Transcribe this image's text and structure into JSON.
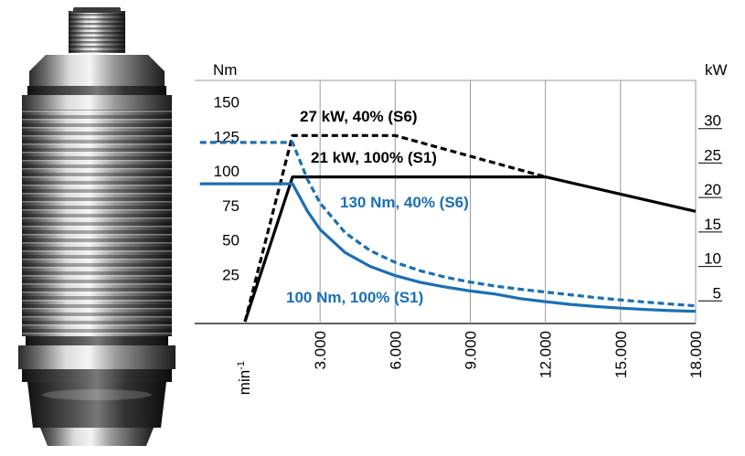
{
  "chart_data": {
    "type": "line",
    "left_unit": "Nm",
    "right_unit": "kW",
    "x_unit_label": "min",
    "x_unit_exp": "-1",
    "xlim": [
      0,
      18000
    ],
    "ylim_left": [
      0,
      175
    ],
    "ylim_right": [
      0,
      35
    ],
    "x_ticks": [
      {
        "value": 3000,
        "label": "3.000"
      },
      {
        "value": 6000,
        "label": "6.000"
      },
      {
        "value": 9000,
        "label": "9.000"
      },
      {
        "value": 12000,
        "label": "12.000"
      },
      {
        "value": 15000,
        "label": "15.000"
      },
      {
        "value": 18000,
        "label": "18.000"
      }
    ],
    "left_ticks": [
      {
        "value": 25,
        "label": "25"
      },
      {
        "value": 50,
        "label": "50"
      },
      {
        "value": 75,
        "label": "75"
      },
      {
        "value": 100,
        "label": "100"
      },
      {
        "value": 125,
        "label": "125"
      },
      {
        "value": 150,
        "label": "150"
      }
    ],
    "right_ticks": [
      {
        "value": 5,
        "label": "5"
      },
      {
        "value": 10,
        "label": "10"
      },
      {
        "value": 15,
        "label": "15"
      },
      {
        "value": 20,
        "label": "20"
      },
      {
        "value": 25,
        "label": "25"
      },
      {
        "value": 30,
        "label": "30"
      }
    ],
    "grid": true,
    "series": [
      {
        "name": "27 kW, 40% (S6)",
        "axis": "right",
        "color": "#000000",
        "dash": true,
        "x": [
          0,
          1900,
          6000,
          12000
        ],
        "y": [
          0,
          27,
          27,
          21
        ]
      },
      {
        "name": "21 kW, 100% (S1)",
        "axis": "right",
        "color": "#000000",
        "dash": false,
        "x": [
          0,
          1900,
          12000,
          18000
        ],
        "y": [
          0,
          21,
          21,
          16
        ]
      },
      {
        "name": "130 Nm, 40% (S6)",
        "axis": "left",
        "color": "#1a6fb4",
        "dash": true,
        "x": [
          -1800,
          0,
          1900,
          2500,
          3000,
          4000,
          5000,
          6000,
          7000,
          8000,
          9000,
          10000,
          11000,
          12000,
          13000,
          14000,
          15000,
          16000,
          17000,
          18000
        ],
        "y": [
          130,
          130,
          130,
          103,
          86,
          64.5,
          51.6,
          43,
          36.9,
          32.3,
          28.7,
          25.8,
          23.5,
          21.5,
          19.5,
          17.5,
          15.8,
          14.2,
          12.8,
          11.5
        ]
      },
      {
        "name": "100 Nm, 100% (S1)",
        "axis": "left",
        "color": "#1a6fb4",
        "dash": false,
        "x": [
          -1800,
          0,
          1900,
          2500,
          3000,
          4000,
          5000,
          6000,
          7000,
          8000,
          9000,
          10000,
          11000,
          12000,
          13000,
          14000,
          15000,
          16000,
          17000,
          18000
        ],
        "y": [
          100,
          100,
          100,
          80,
          66.8,
          50.1,
          40.1,
          33.4,
          28.6,
          25.1,
          22.3,
          20,
          16.7,
          14.5,
          12.5,
          11,
          9.8,
          8.8,
          8,
          7.5
        ]
      }
    ]
  },
  "annotations": [
    {
      "text": "27 kW, 40% (S6)",
      "color": "#000000"
    },
    {
      "text": "21 kW, 100% (S1)",
      "color": "#000000"
    },
    {
      "text": "130 Nm, 40% (S6)",
      "color": "#1a6fb4"
    },
    {
      "text": "100 Nm, 100% (S1)",
      "color": "#1a6fb4"
    }
  ]
}
